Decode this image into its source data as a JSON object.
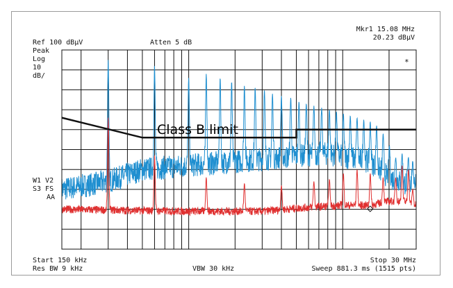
{
  "header": {
    "ref": "Ref 100 dBµV",
    "atten": "Atten 5 dB",
    "mkr_label": "Mkr1  15.08 MHz",
    "mkr_value": "20.23 dBµV"
  },
  "left_panel": {
    "detector": "Peak",
    "scale_type": "Log",
    "scale_value": "10",
    "scale_unit": "dB/",
    "trace_line1": "W1  V2",
    "trace_line2": "S3  FS",
    "trace_line3": "AA"
  },
  "footer": {
    "start": "Start 150 kHz",
    "stop": "Stop 30 MHz",
    "rbw": "Res BW 9 kHz",
    "vbw": "VBW 30 kHz",
    "sweep": "Sweep 881.3 ms (1515 pts)"
  },
  "marker_symbol": "*",
  "colors": {
    "blue_trace": "#1f8fd0",
    "red_trace": "#e03030",
    "limit_line": "#111111",
    "grid": "#111111"
  },
  "chart_data": {
    "type": "line",
    "x_scale": "log",
    "x_unit": "MHz",
    "xlim": [
      0.15,
      30
    ],
    "y_unit": "dBµV",
    "ylim": [
      0,
      100
    ],
    "grid": true,
    "annotation": "Class B limit",
    "series": [
      {
        "name": "",
        "color": "#111111",
        "role": "limit",
        "x": [
          0.15,
          0.5,
          0.5,
          5,
          5,
          30
        ],
        "y": [
          66,
          56,
          56,
          56,
          60,
          60
        ]
      },
      {
        "name": "",
        "color": "#1f8fd0",
        "role": "peaks",
        "baseline": [
          [
            0.15,
            30
          ],
          [
            0.3,
            34
          ],
          [
            0.5,
            40
          ],
          [
            1,
            42
          ],
          [
            2,
            44
          ],
          [
            4,
            46
          ],
          [
            8,
            48
          ],
          [
            15,
            44
          ],
          [
            20,
            36
          ],
          [
            25,
            33
          ],
          [
            30,
            34
          ]
        ],
        "noise": 6,
        "peaks": [
          [
            0.3,
            95
          ],
          [
            0.6,
            92
          ],
          [
            1.0,
            86
          ],
          [
            1.3,
            88
          ],
          [
            1.6,
            86
          ],
          [
            1.9,
            84
          ],
          [
            2.3,
            82
          ],
          [
            2.7,
            81
          ],
          [
            3.1,
            80
          ],
          [
            3.5,
            78
          ],
          [
            4.0,
            77
          ],
          [
            4.6,
            76
          ],
          [
            5.2,
            74
          ],
          [
            5.8,
            73
          ],
          [
            6.5,
            72
          ],
          [
            7.3,
            71
          ],
          [
            8.2,
            70
          ],
          [
            9.1,
            69
          ],
          [
            10.1,
            68
          ],
          [
            11.2,
            67
          ],
          [
            12.4,
            66
          ],
          [
            13.7,
            65
          ],
          [
            15.1,
            64
          ],
          [
            16.6,
            62
          ],
          [
            18.3,
            58
          ],
          [
            20.1,
            52
          ],
          [
            22.1,
            46
          ],
          [
            24.3,
            48
          ],
          [
            26.7,
            46
          ],
          [
            28.5,
            44
          ]
        ]
      },
      {
        "name": "",
        "color": "#e03030",
        "role": "average",
        "baseline": [
          [
            0.15,
            20
          ],
          [
            1,
            19
          ],
          [
            3,
            19
          ],
          [
            6,
            21
          ],
          [
            10,
            22
          ],
          [
            15,
            22
          ],
          [
            20,
            24
          ],
          [
            25,
            24
          ],
          [
            30,
            22
          ]
        ],
        "noise": 2,
        "peaks": [
          [
            0.3,
            66
          ],
          [
            0.6,
            47
          ],
          [
            1.3,
            36
          ],
          [
            2.3,
            33
          ],
          [
            4.0,
            32
          ],
          [
            6.5,
            34
          ],
          [
            8.2,
            35
          ],
          [
            10.1,
            38
          ],
          [
            12.4,
            40
          ],
          [
            15.1,
            38
          ],
          [
            18.3,
            36
          ],
          [
            22.1,
            36
          ],
          [
            24.3,
            42
          ],
          [
            26.7,
            40
          ],
          [
            28.5,
            30
          ]
        ]
      }
    ]
  }
}
